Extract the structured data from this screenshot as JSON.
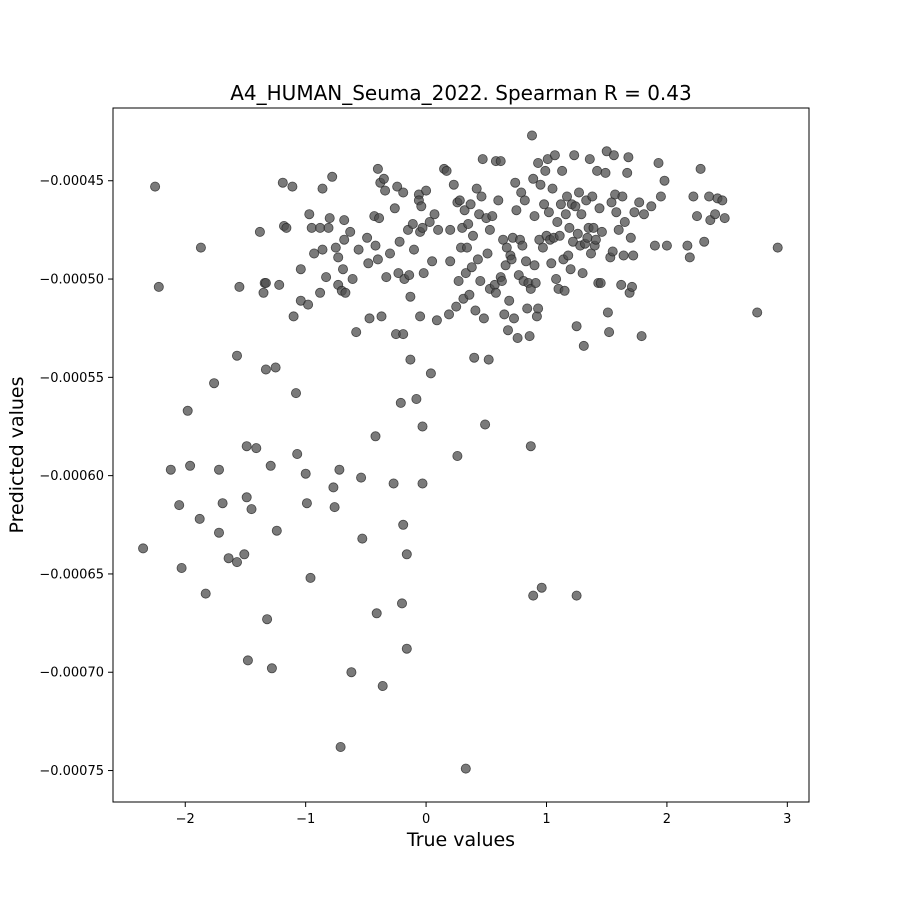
{
  "chart_data": {
    "type": "scatter",
    "title": "A4_HUMAN_Seuma_2022. Spearman R = 0.43",
    "xlabel": "True values",
    "ylabel": "Predicted values",
    "xlim": [
      -2.6,
      3.18
    ],
    "ylim": [
      -0.000766,
      -0.000413
    ],
    "xticks": [
      -2,
      -1,
      0,
      1,
      2,
      3
    ],
    "xtick_labels": [
      "−2",
      "−1",
      "0",
      "1",
      "2",
      "3"
    ],
    "yticks": [
      -0.00075,
      -0.0007,
      -0.00065,
      -0.0006,
      -0.00055,
      -0.0005,
      -0.00045
    ],
    "ytick_labels": [
      "−0.00075",
      "−0.00070",
      "−0.00065",
      "−0.00060",
      "−0.00055",
      "−0.00050",
      "−0.00045"
    ],
    "grid": false,
    "marker_color": "#4d4d4d",
    "marker_alpha": 0.75,
    "points": [
      [
        -2.25,
        -0.000453
      ],
      [
        -2.22,
        -0.000504
      ],
      [
        -1.87,
        -0.000484
      ],
      [
        -2.35,
        -0.000637
      ],
      [
        -2.12,
        -0.000597
      ],
      [
        -2.05,
        -0.000615
      ],
      [
        -2.03,
        -0.000647
      ],
      [
        -1.98,
        -0.000567
      ],
      [
        -1.96,
        -0.000595
      ],
      [
        -1.88,
        -0.000622
      ],
      [
        -1.83,
        -0.00066
      ],
      [
        -1.76,
        -0.000553
      ],
      [
        -1.72,
        -0.000597
      ],
      [
        -1.72,
        -0.000629
      ],
      [
        -1.69,
        -0.000614
      ],
      [
        -1.64,
        -0.000642
      ],
      [
        -1.57,
        -0.000644
      ],
      [
        -1.57,
        -0.000539
      ],
      [
        -1.55,
        -0.000504
      ],
      [
        -1.51,
        -0.00064
      ],
      [
        -1.49,
        -0.000585
      ],
      [
        -1.49,
        -0.000611
      ],
      [
        -1.48,
        -0.000694
      ],
      [
        -1.45,
        -0.000617
      ],
      [
        -1.41,
        -0.000586
      ],
      [
        -1.38,
        -0.000476
      ],
      [
        -1.35,
        -0.000507
      ],
      [
        -1.34,
        -0.000502
      ],
      [
        -1.33,
        -0.000502
      ],
      [
        -1.33,
        -0.000546
      ],
      [
        -1.32,
        -0.000673
      ],
      [
        -1.29,
        -0.000595
      ],
      [
        -1.28,
        -0.000698
      ],
      [
        -1.25,
        -0.000545
      ],
      [
        -1.24,
        -0.000628
      ],
      [
        -1.22,
        -0.000503
      ],
      [
        -1.19,
        -0.000451
      ],
      [
        -1.18,
        -0.000473
      ],
      [
        -1.16,
        -0.000474
      ],
      [
        -1.11,
        -0.000453
      ],
      [
        -1.1,
        -0.000519
      ],
      [
        -1.08,
        -0.000558
      ],
      [
        -1.07,
        -0.000589
      ],
      [
        -1.04,
        -0.000511
      ],
      [
        -1.04,
        -0.000495
      ],
      [
        -1.0,
        -0.000599
      ],
      [
        -0.99,
        -0.000614
      ],
      [
        -0.98,
        -0.000513
      ],
      [
        -0.97,
        -0.000467
      ],
      [
        -0.96,
        -0.000652
      ],
      [
        -0.95,
        -0.000474
      ],
      [
        -0.93,
        -0.000487
      ],
      [
        -0.88,
        -0.000474
      ],
      [
        -0.88,
        -0.000507
      ],
      [
        -0.86,
        -0.000485
      ],
      [
        -0.86,
        -0.000454
      ],
      [
        -0.83,
        -0.000499
      ],
      [
        -0.81,
        -0.000474
      ],
      [
        -0.8,
        -0.000469
      ],
      [
        -0.78,
        -0.000448
      ],
      [
        -0.77,
        -0.000606
      ],
      [
        -0.76,
        -0.000616
      ],
      [
        -0.75,
        -0.000484
      ],
      [
        -0.73,
        -0.000489
      ],
      [
        -0.73,
        -0.000503
      ],
      [
        -0.72,
        -0.000597
      ],
      [
        -0.71,
        -0.000738
      ],
      [
        -0.7,
        -0.000506
      ],
      [
        -0.69,
        -0.000495
      ],
      [
        -0.68,
        -0.00047
      ],
      [
        -0.68,
        -0.00048
      ],
      [
        -0.67,
        -0.000507
      ],
      [
        -0.63,
        -0.000476
      ],
      [
        -0.62,
        -0.0007
      ],
      [
        -0.61,
        -0.0005
      ],
      [
        -0.58,
        -0.000527
      ],
      [
        -0.56,
        -0.000485
      ],
      [
        -0.54,
        -0.000601
      ],
      [
        -0.53,
        -0.000632
      ],
      [
        -0.49,
        -0.000479
      ],
      [
        -0.48,
        -0.000492
      ],
      [
        -0.47,
        -0.00052
      ],
      [
        -0.43,
        -0.000468
      ],
      [
        -0.42,
        -0.00058
      ],
      [
        -0.42,
        -0.000483
      ],
      [
        -0.41,
        -0.00067
      ],
      [
        -0.4,
        -0.000444
      ],
      [
        -0.4,
        -0.00049
      ],
      [
        -0.39,
        -0.000469
      ],
      [
        -0.38,
        -0.000451
      ],
      [
        -0.37,
        -0.000519
      ],
      [
        -0.36,
        -0.000707
      ],
      [
        -0.35,
        -0.000449
      ],
      [
        -0.34,
        -0.000455
      ],
      [
        -0.33,
        -0.000499
      ],
      [
        -0.3,
        -0.000487
      ],
      [
        -0.27,
        -0.000604
      ],
      [
        -0.26,
        -0.000464
      ],
      [
        -0.25,
        -0.000528
      ],
      [
        -0.24,
        -0.000453
      ],
      [
        -0.23,
        -0.000497
      ],
      [
        -0.22,
        -0.000481
      ],
      [
        -0.21,
        -0.000563
      ],
      [
        -0.2,
        -0.000665
      ],
      [
        -0.19,
        -0.000528
      ],
      [
        -0.19,
        -0.000625
      ],
      [
        -0.19,
        -0.000456
      ],
      [
        -0.18,
        -0.0005
      ],
      [
        -0.16,
        -0.00064
      ],
      [
        -0.16,
        -0.000688
      ],
      [
        -0.15,
        -0.000475
      ],
      [
        -0.14,
        -0.000498
      ],
      [
        -0.13,
        -0.000509
      ],
      [
        -0.13,
        -0.000541
      ],
      [
        -0.11,
        -0.000472
      ],
      [
        -0.1,
        -0.000485
      ],
      [
        -0.08,
        -0.000561
      ],
      [
        -0.06,
        -0.000457
      ],
      [
        -0.06,
        -0.00046
      ],
      [
        -0.05,
        -0.000476
      ],
      [
        -0.05,
        -0.000519
      ],
      [
        -0.04,
        -0.000463
      ],
      [
        -0.03,
        -0.000604
      ],
      [
        -0.03,
        -0.000575
      ],
      [
        -0.03,
        -0.000474
      ],
      [
        -0.02,
        -0.000497
      ],
      [
        0.0,
        -0.000455
      ],
      [
        0.03,
        -0.000471
      ],
      [
        0.04,
        -0.000548
      ],
      [
        0.05,
        -0.000491
      ],
      [
        0.07,
        -0.000467
      ],
      [
        0.09,
        -0.000521
      ],
      [
        0.1,
        -0.000475
      ],
      [
        0.15,
        -0.000444
      ],
      [
        0.17,
        -0.000445
      ],
      [
        0.19,
        -0.000518
      ],
      [
        0.2,
        -0.000475
      ],
      [
        0.2,
        -0.000491
      ],
      [
        0.23,
        -0.000452
      ],
      [
        0.25,
        -0.000514
      ],
      [
        0.26,
        -0.000461
      ],
      [
        0.26,
        -0.00059
      ],
      [
        0.27,
        -0.000501
      ],
      [
        0.28,
        -0.00046
      ],
      [
        0.29,
        -0.000484
      ],
      [
        0.3,
        -0.000474
      ],
      [
        0.31,
        -0.00051
      ],
      [
        0.32,
        -0.000465
      ],
      [
        0.33,
        -0.000749
      ],
      [
        0.33,
        -0.000497
      ],
      [
        0.34,
        -0.000484
      ],
      [
        0.35,
        -0.000472
      ],
      [
        0.36,
        -0.000508
      ],
      [
        0.37,
        -0.000462
      ],
      [
        0.38,
        -0.000494
      ],
      [
        0.39,
        -0.000478
      ],
      [
        0.4,
        -0.00054
      ],
      [
        0.41,
        -0.000516
      ],
      [
        0.42,
        -0.000454
      ],
      [
        0.43,
        -0.00049
      ],
      [
        0.44,
        -0.000467
      ],
      [
        0.45,
        -0.000501
      ],
      [
        0.46,
        -0.000458
      ],
      [
        0.47,
        -0.000439
      ],
      [
        0.48,
        -0.00052
      ],
      [
        0.49,
        -0.000574
      ],
      [
        0.5,
        -0.000469
      ],
      [
        0.51,
        -0.000487
      ],
      [
        0.52,
        -0.000541
      ],
      [
        0.53,
        -0.000505
      ],
      [
        0.53,
        -0.000475
      ],
      [
        0.55,
        -0.000468
      ],
      [
        0.57,
        -0.000503
      ],
      [
        0.58,
        -0.000507
      ],
      [
        0.58,
        -0.00044
      ],
      [
        0.6,
        -0.00046
      ],
      [
        0.62,
        -0.000499
      ],
      [
        0.62,
        -0.00044
      ],
      [
        0.63,
        -0.000501
      ],
      [
        0.64,
        -0.00048
      ],
      [
        0.65,
        -0.000518
      ],
      [
        0.66,
        -0.000493
      ],
      [
        0.67,
        -0.000484
      ],
      [
        0.68,
        -0.000526
      ],
      [
        0.69,
        -0.000511
      ],
      [
        0.7,
        -0.000488
      ],
      [
        0.71,
        -0.00049
      ],
      [
        0.72,
        -0.000479
      ],
      [
        0.73,
        -0.00052
      ],
      [
        0.74,
        -0.000451
      ],
      [
        0.75,
        -0.000465
      ],
      [
        0.76,
        -0.00053
      ],
      [
        0.77,
        -0.000498
      ],
      [
        0.78,
        -0.00048
      ],
      [
        0.79,
        -0.000456
      ],
      [
        0.8,
        -0.000483
      ],
      [
        0.81,
        -0.000501
      ],
      [
        0.82,
        -0.00046
      ],
      [
        0.83,
        -0.000491
      ],
      [
        0.84,
        -0.000515
      ],
      [
        0.85,
        -0.000502
      ],
      [
        0.86,
        -0.000529
      ],
      [
        0.87,
        -0.000505
      ],
      [
        0.87,
        -0.000585
      ],
      [
        0.88,
        -0.000427
      ],
      [
        0.89,
        -0.000449
      ],
      [
        0.89,
        -0.000661
      ],
      [
        0.9,
        -0.000468
      ],
      [
        0.9,
        -0.000493
      ],
      [
        0.91,
        -0.000502
      ],
      [
        0.92,
        -0.000519
      ],
      [
        0.93,
        -0.000441
      ],
      [
        0.93,
        -0.000515
      ],
      [
        0.94,
        -0.00048
      ],
      [
        0.95,
        -0.000452
      ],
      [
        0.96,
        -0.000657
      ],
      [
        0.97,
        -0.000484
      ],
      [
        0.98,
        -0.000462
      ],
      [
        0.99,
        -0.000445
      ],
      [
        1.0,
        -0.000478
      ],
      [
        1.01,
        -0.000439
      ],
      [
        1.02,
        -0.000466
      ],
      [
        1.03,
        -0.00048
      ],
      [
        1.04,
        -0.000492
      ],
      [
        1.05,
        -0.000454
      ],
      [
        1.06,
        -0.000479
      ],
      [
        1.07,
        -0.000437
      ],
      [
        1.08,
        -0.0005
      ],
      [
        1.09,
        -0.000471
      ],
      [
        1.1,
        -0.000505
      ],
      [
        1.11,
        -0.000478
      ],
      [
        1.12,
        -0.000462
      ],
      [
        1.13,
        -0.000445
      ],
      [
        1.14,
        -0.00049
      ],
      [
        1.15,
        -0.000506
      ],
      [
        1.16,
        -0.000467
      ],
      [
        1.17,
        -0.000458
      ],
      [
        1.18,
        -0.000488
      ],
      [
        1.19,
        -0.000474
      ],
      [
        1.2,
        -0.000495
      ],
      [
        1.21,
        -0.000462
      ],
      [
        1.22,
        -0.000481
      ],
      [
        1.23,
        -0.000437
      ],
      [
        1.24,
        -0.000463
      ],
      [
        1.25,
        -0.000524
      ],
      [
        1.25,
        -0.000661
      ],
      [
        1.26,
        -0.000477
      ],
      [
        1.27,
        -0.000456
      ],
      [
        1.28,
        -0.000483
      ],
      [
        1.29,
        -0.000467
      ],
      [
        1.3,
        -0.000497
      ],
      [
        1.31,
        -0.000534
      ],
      [
        1.32,
        -0.000482
      ],
      [
        1.33,
        -0.00046
      ],
      [
        1.34,
        -0.000479
      ],
      [
        1.35,
        -0.000474
      ],
      [
        1.36,
        -0.000439
      ],
      [
        1.37,
        -0.000487
      ],
      [
        1.38,
        -0.000458
      ],
      [
        1.39,
        -0.000474
      ],
      [
        1.4,
        -0.000483
      ],
      [
        1.41,
        -0.00048
      ],
      [
        1.42,
        -0.000445
      ],
      [
        1.43,
        -0.000502
      ],
      [
        1.44,
        -0.000464
      ],
      [
        1.45,
        -0.000502
      ],
      [
        1.46,
        -0.000476
      ],
      [
        1.49,
        -0.000446
      ],
      [
        1.5,
        -0.000435
      ],
      [
        1.51,
        -0.000517
      ],
      [
        1.52,
        -0.000527
      ],
      [
        1.53,
        -0.000489
      ],
      [
        1.54,
        -0.000461
      ],
      [
        1.55,
        -0.000486
      ],
      [
        1.56,
        -0.000437
      ],
      [
        1.57,
        -0.000457
      ],
      [
        1.58,
        -0.000466
      ],
      [
        1.6,
        -0.000475
      ],
      [
        1.62,
        -0.000503
      ],
      [
        1.63,
        -0.000458
      ],
      [
        1.64,
        -0.000488
      ],
      [
        1.65,
        -0.000471
      ],
      [
        1.67,
        -0.000446
      ],
      [
        1.68,
        -0.000438
      ],
      [
        1.69,
        -0.000507
      ],
      [
        1.7,
        -0.000479
      ],
      [
        1.71,
        -0.000504
      ],
      [
        1.72,
        -0.000488
      ],
      [
        1.73,
        -0.000466
      ],
      [
        1.77,
        -0.000461
      ],
      [
        1.79,
        -0.000529
      ],
      [
        1.81,
        -0.000467
      ],
      [
        1.87,
        -0.000463
      ],
      [
        1.9,
        -0.000483
      ],
      [
        1.93,
        -0.000441
      ],
      [
        1.95,
        -0.000458
      ],
      [
        1.98,
        -0.00045
      ],
      [
        2.0,
        -0.000483
      ],
      [
        2.17,
        -0.000483
      ],
      [
        2.19,
        -0.000489
      ],
      [
        2.22,
        -0.000458
      ],
      [
        2.25,
        -0.000468
      ],
      [
        2.28,
        -0.000444
      ],
      [
        2.31,
        -0.000481
      ],
      [
        2.35,
        -0.000458
      ],
      [
        2.36,
        -0.00047
      ],
      [
        2.4,
        -0.000467
      ],
      [
        2.42,
        -0.000459
      ],
      [
        2.46,
        -0.00046
      ],
      [
        2.48,
        -0.000469
      ],
      [
        2.75,
        -0.000517
      ],
      [
        2.92,
        -0.000484
      ]
    ]
  }
}
